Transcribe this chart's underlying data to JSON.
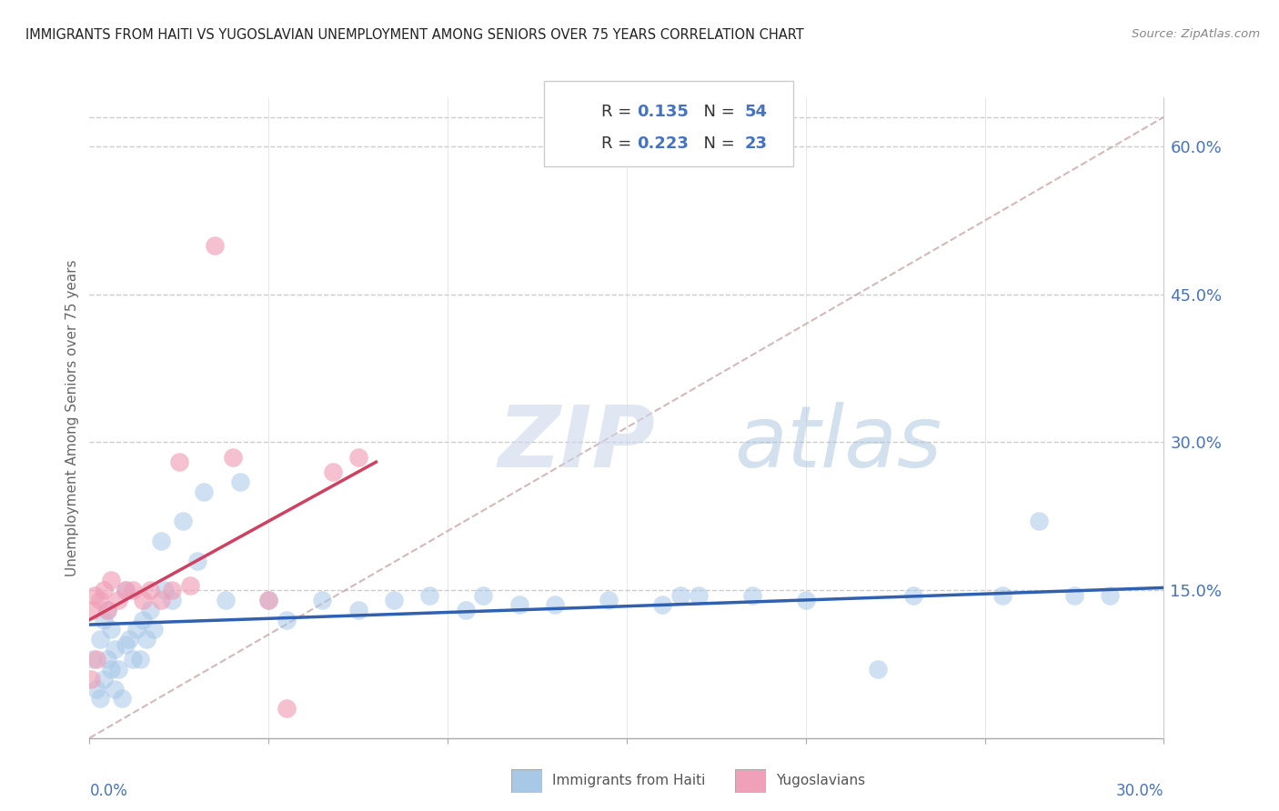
{
  "title": "IMMIGRANTS FROM HAITI VS YUGOSLAVIAN UNEMPLOYMENT AMONG SENIORS OVER 75 YEARS CORRELATION CHART",
  "source": "Source: ZipAtlas.com",
  "ylabel": "Unemployment Among Seniors over 75 years",
  "xlim": [
    0.0,
    30.0
  ],
  "ylim": [
    0.0,
    65.0
  ],
  "right_yticks": [
    15.0,
    30.0,
    45.0,
    60.0
  ],
  "haiti_color": "#a8c8e8",
  "haiti_line_color": "#3060b0",
  "yugo_color": "#f0a0b8",
  "yugo_line_color": "#d04060",
  "diagonal_color": "#d0b0b0",
  "watermark_zip": "ZIP",
  "watermark_atlas": "atlas",
  "haiti_x": [
    0.1,
    0.2,
    0.3,
    0.3,
    0.4,
    0.4,
    0.5,
    0.5,
    0.6,
    0.6,
    0.7,
    0.7,
    0.8,
    0.9,
    1.0,
    1.0,
    1.1,
    1.2,
    1.3,
    1.4,
    1.5,
    1.6,
    1.7,
    1.8,
    2.0,
    2.1,
    2.3,
    2.6,
    3.0,
    3.2,
    3.8,
    4.2,
    5.0,
    5.5,
    6.5,
    7.5,
    8.5,
    9.5,
    10.5,
    11.0,
    12.0,
    13.0,
    14.5,
    16.0,
    16.5,
    17.0,
    18.5,
    20.0,
    22.0,
    23.0,
    25.5,
    26.5,
    27.5,
    28.5
  ],
  "haiti_y": [
    8.0,
    5.0,
    4.0,
    10.0,
    6.0,
    12.0,
    8.0,
    13.0,
    7.0,
    11.0,
    5.0,
    9.0,
    7.0,
    4.0,
    9.5,
    15.0,
    10.0,
    8.0,
    11.0,
    8.0,
    12.0,
    10.0,
    13.0,
    11.0,
    20.0,
    15.0,
    14.0,
    22.0,
    18.0,
    25.0,
    14.0,
    26.0,
    14.0,
    12.0,
    14.0,
    13.0,
    14.0,
    14.5,
    13.0,
    14.5,
    13.5,
    13.5,
    14.0,
    13.5,
    14.5,
    14.5,
    14.5,
    14.0,
    7.0,
    14.5,
    14.5,
    22.0,
    14.5,
    14.5
  ],
  "yugo_x": [
    0.05,
    0.1,
    0.15,
    0.2,
    0.3,
    0.4,
    0.5,
    0.6,
    0.8,
    1.0,
    1.2,
    1.5,
    1.7,
    2.0,
    2.3,
    2.5,
    2.8,
    3.5,
    4.0,
    5.0,
    5.5,
    6.8,
    7.5
  ],
  "yugo_y": [
    6.0,
    13.0,
    14.5,
    8.0,
    14.0,
    15.0,
    13.0,
    16.0,
    14.0,
    15.0,
    15.0,
    14.0,
    15.0,
    14.0,
    15.0,
    28.0,
    15.5,
    50.0,
    28.5,
    14.0,
    3.0,
    27.0,
    28.5
  ]
}
